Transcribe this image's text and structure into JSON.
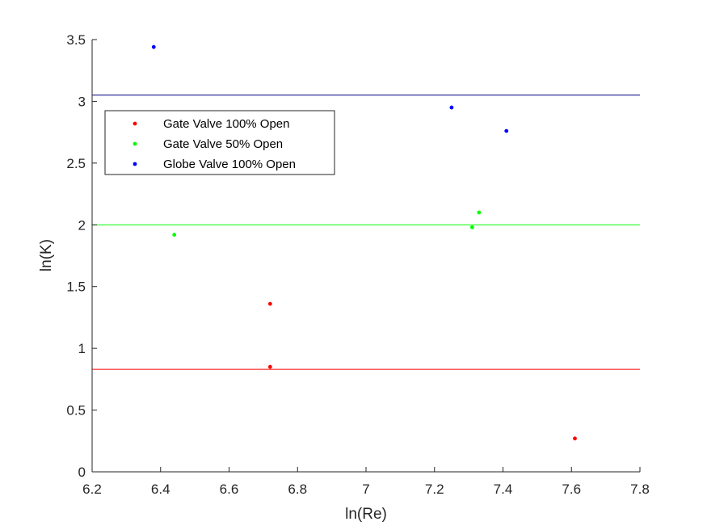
{
  "chart_data": {
    "type": "scatter",
    "xlabel": "ln(Re)",
    "ylabel": "ln(K)",
    "xlim": [
      6.2,
      7.8
    ],
    "ylim": [
      0,
      3.5
    ],
    "xticks": [
      "6.2",
      "6.4",
      "6.6",
      "6.8",
      "7",
      "7.2",
      "7.4",
      "7.6",
      "7.8"
    ],
    "yticks": [
      "0",
      "0.5",
      "1",
      "1.5",
      "2",
      "2.5",
      "3",
      "3.5"
    ],
    "grid": false,
    "legend_position": "top-left",
    "series": [
      {
        "name": "Gate Valve 100% Open",
        "color": "#ff0000",
        "points": [
          [
            6.72,
            1.36
          ],
          [
            6.72,
            0.85
          ],
          [
            7.61,
            0.27
          ]
        ],
        "mean_line": 0.83
      },
      {
        "name": "Gate Valve 50% Open",
        "color": "#00ff00",
        "points": [
          [
            6.44,
            1.92
          ],
          [
            7.31,
            1.98
          ],
          [
            7.33,
            2.1
          ]
        ],
        "mean_line": 2.0
      },
      {
        "name": "Globe Valve 100% Open",
        "color": "#0000ff",
        "points": [
          [
            6.38,
            3.44
          ],
          [
            7.25,
            2.95
          ],
          [
            7.41,
            2.76
          ]
        ],
        "mean_line": 3.05
      }
    ],
    "mean_line_colors": [
      "#ff0000",
      "#00ff00",
      "#000080"
    ]
  }
}
